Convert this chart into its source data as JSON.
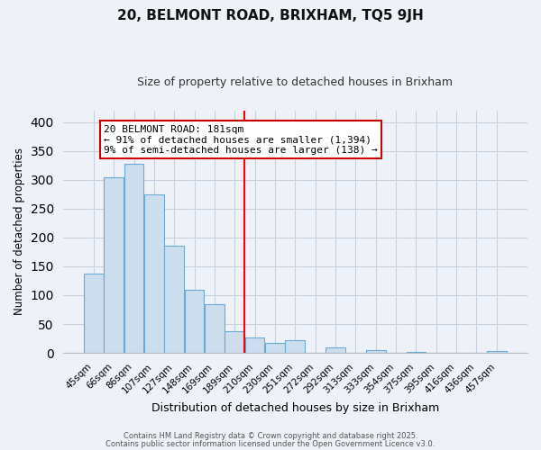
{
  "title": "20, BELMONT ROAD, BRIXHAM, TQ5 9JH",
  "subtitle": "Size of property relative to detached houses in Brixham",
  "xlabel": "Distribution of detached houses by size in Brixham",
  "ylabel": "Number of detached properties",
  "bar_labels": [
    "45sqm",
    "66sqm",
    "86sqm",
    "107sqm",
    "127sqm",
    "148sqm",
    "169sqm",
    "189sqm",
    "210sqm",
    "230sqm",
    "251sqm",
    "272sqm",
    "292sqm",
    "313sqm",
    "333sqm",
    "354sqm",
    "375sqm",
    "395sqm",
    "416sqm",
    "436sqm",
    "457sqm"
  ],
  "bar_values": [
    138,
    305,
    327,
    274,
    186,
    110,
    85,
    38,
    27,
    18,
    22,
    0,
    10,
    0,
    5,
    0,
    2,
    0,
    0,
    0,
    4
  ],
  "bar_color": "#ccdded",
  "bar_edge_color": "#6aaad4",
  "vline_x": 7.5,
  "vline_color": "red",
  "annotation_title": "20 BELMONT ROAD: 181sqm",
  "annotation_line1": "← 91% of detached houses are smaller (1,394)",
  "annotation_line2": "9% of semi-detached houses are larger (138) →",
  "annotation_box_facecolor": "white",
  "annotation_box_edgecolor": "#cc0000",
  "ylim": [
    0,
    420
  ],
  "yticks": [
    0,
    50,
    100,
    150,
    200,
    250,
    300,
    350,
    400
  ],
  "footnote1": "Contains HM Land Registry data © Crown copyright and database right 2025.",
  "footnote2": "Contains public sector information licensed under the Open Government Licence v3.0.",
  "bg_color": "#eef2f8",
  "grid_color": "#c5d0e0",
  "title_fontsize": 11,
  "subtitle_fontsize": 9,
  "ylabel_fontsize": 8.5,
  "xlabel_fontsize": 9,
  "tick_fontsize": 7.5,
  "footnote_fontsize": 6,
  "ann_fontsize": 8
}
